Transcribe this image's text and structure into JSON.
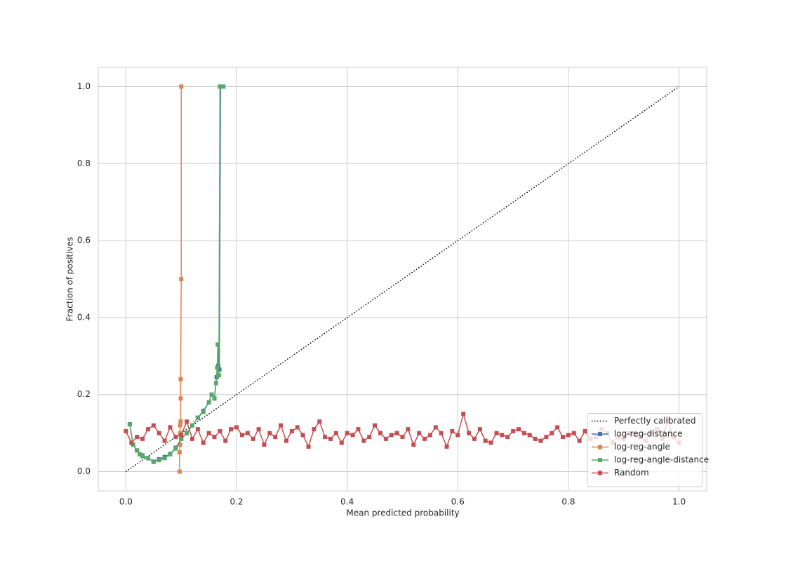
{
  "chart_data": {
    "type": "line",
    "xlabel": "Mean predicted probability",
    "ylabel": "Fraction of positives",
    "xlim": [
      -0.05,
      1.05
    ],
    "ylim": [
      -0.05,
      1.05
    ],
    "xticks": [
      {
        "value": 0,
        "label": "0.0"
      },
      {
        "value": 0.2,
        "label": "0.2"
      },
      {
        "value": 0.4,
        "label": "0.4"
      },
      {
        "value": 0.6,
        "label": "0.6"
      },
      {
        "value": 0.8,
        "label": "0.8"
      },
      {
        "value": 1,
        "label": "1.0"
      }
    ],
    "yticks": [
      {
        "value": 0,
        "label": "0.0"
      },
      {
        "value": 0.2,
        "label": "0.2"
      },
      {
        "value": 0.4,
        "label": "0.4"
      },
      {
        "value": 0.6,
        "label": "0.6"
      },
      {
        "value": 0.8,
        "label": "0.8"
      },
      {
        "value": 1,
        "label": "1.0"
      }
    ],
    "grid": true,
    "legend": "lower right",
    "series": [
      {
        "name": "Perfectly calibrated",
        "color": "#000000",
        "linestyle": "dotted",
        "marker": null,
        "x": [
          0,
          1
        ],
        "values": [
          0,
          1
        ]
      },
      {
        "name": "log-reg-distance",
        "color": "#4c72b0",
        "linestyle": "solid",
        "marker": "s",
        "x": [
          0.007,
          0.013,
          0.02,
          0.03,
          0.04,
          0.05,
          0.06,
          0.07,
          0.08,
          0.09,
          0.1,
          0.11,
          0.12,
          0.13,
          0.14,
          0.15,
          0.155,
          0.16,
          0.164,
          0.167,
          0.169,
          0.171,
          0.176
        ],
        "values": [
          0.123,
          0.07,
          0.055,
          0.042,
          0.035,
          0.026,
          0.032,
          0.038,
          0.046,
          0.062,
          0.085,
          0.1,
          0.12,
          0.14,
          0.158,
          0.18,
          0.2,
          0.19,
          0.245,
          0.275,
          0.265,
          1.0,
          1.0
        ]
      },
      {
        "name": "log-reg-angle",
        "color": "#dd8452",
        "linestyle": "solid",
        "marker": "s",
        "x": [
          0.097,
          0.097,
          0.098,
          0.098,
          0.098,
          0.099,
          0.099,
          0.099,
          0.1,
          0.1
        ],
        "values": [
          0,
          0.05,
          0.07,
          0.1,
          0.12,
          0.13,
          0.19,
          0.24,
          0.5,
          1.0
        ]
      },
      {
        "name": "log-reg-angle-distance",
        "color": "#55a868",
        "linestyle": "solid",
        "marker": "s",
        "x": [
          0.007,
          0.013,
          0.02,
          0.025,
          0.03,
          0.04,
          0.05,
          0.06,
          0.07,
          0.08,
          0.09,
          0.1,
          0.11,
          0.12,
          0.13,
          0.14,
          0.15,
          0.155,
          0.16,
          0.163,
          0.165,
          0.166,
          0.168,
          0.17,
          0.176
        ],
        "values": [
          0.123,
          0.07,
          0.055,
          0.045,
          0.04,
          0.035,
          0.025,
          0.03,
          0.035,
          0.045,
          0.06,
          0.085,
          0.1,
          0.12,
          0.14,
          0.155,
          0.18,
          0.2,
          0.19,
          0.23,
          0.27,
          0.33,
          0.25,
          1.0,
          1.0
        ]
      },
      {
        "name": "Random",
        "color": "#c44e52",
        "linestyle": "solid",
        "marker": "s",
        "x": [
          0,
          0.01,
          0.02,
          0.03,
          0.04,
          0.05,
          0.06,
          0.07,
          0.08,
          0.09,
          0.1,
          0.11,
          0.12,
          0.13,
          0.14,
          0.15,
          0.16,
          0.17,
          0.18,
          0.19,
          0.2,
          0.21,
          0.22,
          0.23,
          0.24,
          0.25,
          0.26,
          0.27,
          0.28,
          0.29,
          0.3,
          0.31,
          0.32,
          0.33,
          0.34,
          0.35,
          0.36,
          0.37,
          0.38,
          0.39,
          0.4,
          0.41,
          0.42,
          0.43,
          0.44,
          0.45,
          0.46,
          0.47,
          0.48,
          0.49,
          0.5,
          0.51,
          0.52,
          0.53,
          0.54,
          0.55,
          0.56,
          0.57,
          0.58,
          0.59,
          0.6,
          0.61,
          0.62,
          0.63,
          0.64,
          0.65,
          0.66,
          0.67,
          0.68,
          0.69,
          0.7,
          0.71,
          0.72,
          0.73,
          0.74,
          0.75,
          0.76,
          0.77,
          0.78,
          0.79,
          0.8,
          0.81,
          0.82,
          0.83,
          0.84,
          0.85,
          0.86,
          0.87,
          0.88,
          0.89,
          0.9,
          0.91,
          0.92,
          0.93,
          0.94,
          0.95,
          0.96,
          0.97,
          0.98,
          0.99,
          1.0
        ],
        "values": [
          0.105,
          0.075,
          0.09,
          0.085,
          0.11,
          0.12,
          0.1,
          0.08,
          0.115,
          0.09,
          0.095,
          0.13,
          0.085,
          0.11,
          0.075,
          0.1,
          0.09,
          0.105,
          0.08,
          0.11,
          0.115,
          0.095,
          0.1,
          0.085,
          0.11,
          0.07,
          0.1,
          0.09,
          0.12,
          0.08,
          0.105,
          0.115,
          0.095,
          0.065,
          0.11,
          0.13,
          0.09,
          0.085,
          0.1,
          0.075,
          0.1,
          0.095,
          0.11,
          0.08,
          0.09,
          0.12,
          0.1,
          0.085,
          0.095,
          0.1,
          0.09,
          0.11,
          0.07,
          0.1,
          0.085,
          0.095,
          0.115,
          0.1,
          0.065,
          0.105,
          0.095,
          0.15,
          0.1,
          0.085,
          0.11,
          0.08,
          0.075,
          0.1,
          0.095,
          0.09,
          0.105,
          0.11,
          0.1,
          0.095,
          0.085,
          0.08,
          0.09,
          0.1,
          0.115,
          0.09,
          0.095,
          0.1,
          0.08,
          0.105,
          0.085,
          0.09,
          0.11,
          0.1,
          0.075,
          0.09,
          0.085,
          0.1,
          0.095,
          0.09,
          0.08,
          0.1,
          0.11,
          0.085,
          0.135,
          0.09,
          0.075
        ]
      }
    ]
  }
}
